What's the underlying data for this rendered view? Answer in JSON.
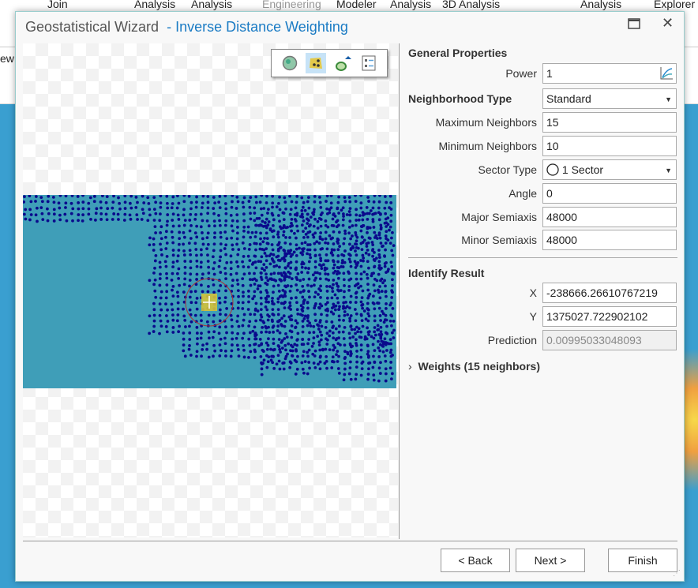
{
  "background_ribbon": {
    "items": [
      "Join",
      "Analysis",
      "Analysis",
      "Engineering",
      "Modeler",
      "Analysis",
      "3D Analysis",
      "Analysis",
      "Explorer"
    ],
    "left_fragment": "ew"
  },
  "dialog": {
    "title": "Geostatistical Wizard",
    "subtitle": "- Inverse Distance Weighting"
  },
  "toolbar": {
    "icons": [
      "globe-icon",
      "points-layer-icon",
      "neighborhood-icon",
      "legend-icon"
    ],
    "active": "points-layer-icon"
  },
  "general": {
    "heading": "General Properties",
    "power_label": "Power",
    "power_value": "1"
  },
  "neighborhood": {
    "heading": "Neighborhood Type",
    "type_value": "Standard",
    "max_label": "Maximum Neighbors",
    "max_value": "15",
    "min_label": "Minimum Neighbors",
    "min_value": "10",
    "sector_label": "Sector Type",
    "sector_value": "1 Sector",
    "angle_label": "Angle",
    "angle_value": "0",
    "major_label": "Major Semiaxis",
    "major_value": "48000",
    "minor_label": "Minor Semiaxis",
    "minor_value": "48000"
  },
  "identify": {
    "heading": "Identify Result",
    "x_label": "X",
    "x_value": "-238666.26610767219",
    "y_label": "Y",
    "y_value": "1375027.722902102",
    "pred_label": "Prediction",
    "pred_value": "0.00995033048093",
    "weights_label": "Weights (15 neighbors)"
  },
  "buttons": {
    "back": "< Back",
    "next": "Next >",
    "finish": "Finish"
  },
  "colors": {
    "accent": "#1a7bc4",
    "points": "#0a0a8c",
    "map": "#3f9eb8"
  }
}
